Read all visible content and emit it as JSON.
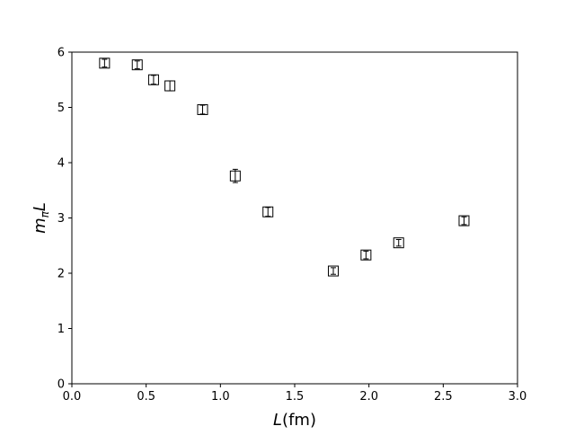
{
  "chart_data": {
    "type": "scatter",
    "title": "",
    "xlabel": {
      "main": "L",
      "suffix": "(fm)"
    },
    "ylabel": {
      "main": "m",
      "sub": "π",
      "tail": "L"
    },
    "xlim": [
      0.0,
      3.0
    ],
    "ylim": [
      0,
      6
    ],
    "xticks": [
      0.0,
      0.5,
      1.0,
      1.5,
      2.0,
      2.5,
      3.0
    ],
    "xtick_labels": [
      "0.0",
      "0.5",
      "1.0",
      "1.5",
      "2.0",
      "2.5",
      "3.0"
    ],
    "yticks": [
      0,
      1,
      2,
      3,
      4,
      5,
      6
    ],
    "ytick_labels": [
      "0",
      "1",
      "2",
      "3",
      "4",
      "5",
      "6"
    ],
    "grid": false,
    "legend": false,
    "marker": "open-square",
    "marker_color": "#000000",
    "points": [
      {
        "x": 0.22,
        "y": 5.8,
        "err": 0.07
      },
      {
        "x": 0.44,
        "y": 5.77,
        "err": 0.07
      },
      {
        "x": 0.55,
        "y": 5.5,
        "err": 0.08
      },
      {
        "x": 0.66,
        "y": 5.39,
        "err": 0.09
      },
      {
        "x": 0.88,
        "y": 4.96,
        "err": 0.08
      },
      {
        "x": 1.1,
        "y": 3.76,
        "err": 0.12
      },
      {
        "x": 1.32,
        "y": 3.11,
        "err": 0.08
      },
      {
        "x": 1.76,
        "y": 2.04,
        "err": 0.06
      },
      {
        "x": 1.98,
        "y": 2.33,
        "err": 0.07
      },
      {
        "x": 2.2,
        "y": 2.55,
        "err": 0.06
      },
      {
        "x": 2.64,
        "y": 2.95,
        "err": 0.07
      }
    ]
  }
}
